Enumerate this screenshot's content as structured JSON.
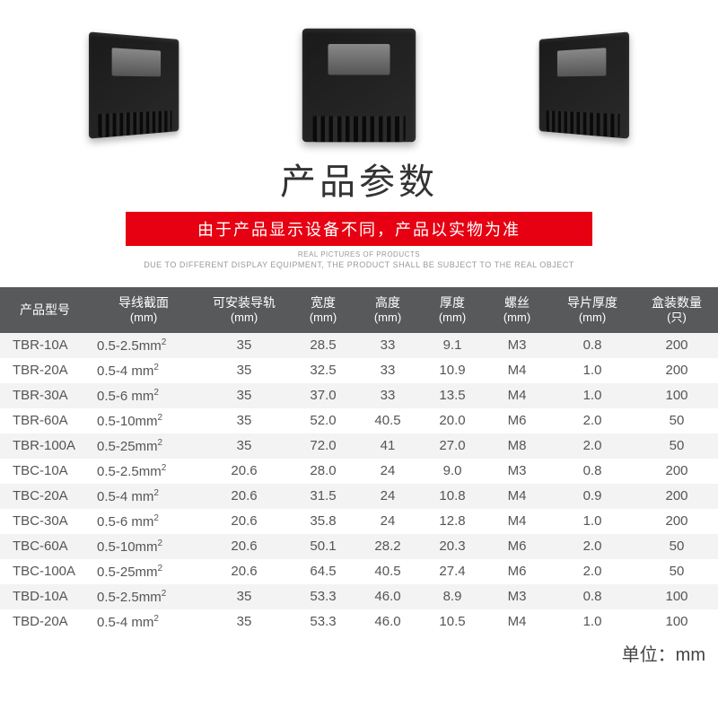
{
  "title": "产品参数",
  "banner": "由于产品显示设备不同，产品以实物为准",
  "subtitle_en_line1": "REAL PICTURES OF PRODUCTS",
  "subtitle_en_line2": "DUE TO DIFFERENT DISPLAY EQUIPMENT, THE PRODUCT SHALL BE SUBJECT TO THE REAL OBJECT",
  "footer_unit": "单位：mm",
  "colors": {
    "banner_bg": "#e60012",
    "banner_text": "#ffffff",
    "header_bg": "#58595b",
    "header_text": "#ffffff",
    "row_odd": "#f3f3f3",
    "row_even": "#ffffff",
    "title_color": "#333333",
    "cell_text": "#555555",
    "subtitle_color": "#999999"
  },
  "typography": {
    "title_fontsize": 40,
    "banner_fontsize": 18,
    "header_fontsize": 14,
    "cell_fontsize": 15,
    "footer_fontsize": 20,
    "subtitle_fontsize": 9
  },
  "table": {
    "columns": [
      {
        "label": "产品型号",
        "unit": ""
      },
      {
        "label": "导线截面",
        "unit": "(mm)"
      },
      {
        "label": "可安装导轨",
        "unit": "(mm)"
      },
      {
        "label": "宽度",
        "unit": "(mm)"
      },
      {
        "label": "高度",
        "unit": "(mm)"
      },
      {
        "label": "厚度",
        "unit": "(mm)"
      },
      {
        "label": "螺丝",
        "unit": "(mm)"
      },
      {
        "label": "导片厚度",
        "unit": "(mm)"
      },
      {
        "label": "盒装数量",
        "unit": "(只)"
      }
    ],
    "rows": [
      [
        "TBR-10A",
        "0.5-2.5mm²",
        "35",
        "28.5",
        "33",
        "9.1",
        "M3",
        "0.8",
        "200"
      ],
      [
        "TBR-20A",
        "0.5-4 mm²",
        "35",
        "32.5",
        "33",
        "10.9",
        "M4",
        "1.0",
        "200"
      ],
      [
        "TBR-30A",
        "0.5-6 mm²",
        "35",
        "37.0",
        "33",
        "13.5",
        "M4",
        "1.0",
        "100"
      ],
      [
        "TBR-60A",
        "0.5-10mm²",
        "35",
        "52.0",
        "40.5",
        "20.0",
        "M6",
        "2.0",
        "50"
      ],
      [
        "TBR-100A",
        "0.5-25mm²",
        "35",
        "72.0",
        "41",
        "27.0",
        "M8",
        "2.0",
        "50"
      ],
      [
        "TBC-10A",
        "0.5-2.5mm²",
        "20.6",
        "28.0",
        "24",
        "9.0",
        "M3",
        "0.8",
        "200"
      ],
      [
        "TBC-20A",
        "0.5-4 mm²",
        "20.6",
        "31.5",
        "24",
        "10.8",
        "M4",
        "0.9",
        "200"
      ],
      [
        "TBC-30A",
        "0.5-6 mm²",
        "20.6",
        "35.8",
        "24",
        "12.8",
        "M4",
        "1.0",
        "200"
      ],
      [
        "TBC-60A",
        "0.5-10mm²",
        "20.6",
        "50.1",
        "28.2",
        "20.3",
        "M6",
        "2.0",
        "50"
      ],
      [
        "TBC-100A",
        "0.5-25mm²",
        "20.6",
        "64.5",
        "40.5",
        "27.4",
        "M6",
        "2.0",
        "50"
      ],
      [
        "TBD-10A",
        "0.5-2.5mm²",
        "35",
        "53.3",
        "46.0",
        "8.9",
        "M3",
        "0.8",
        "100"
      ],
      [
        "TBD-20A",
        "0.5-4 mm²",
        "35",
        "53.3",
        "46.0",
        "10.5",
        "M4",
        "1.0",
        "100"
      ]
    ]
  }
}
